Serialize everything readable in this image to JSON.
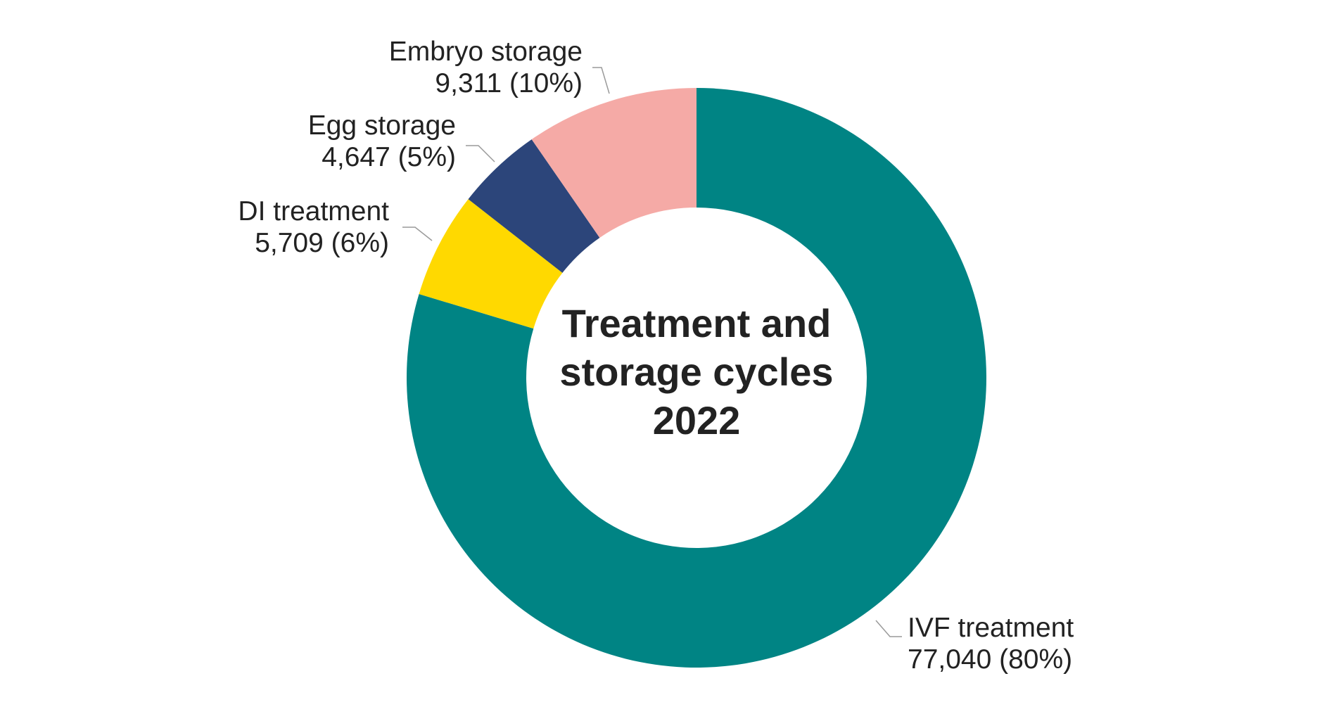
{
  "chart_data": {
    "type": "pie",
    "style": "donut",
    "title_lines": [
      "Treatment and",
      "storage cycles",
      "2022"
    ],
    "slices": [
      {
        "name": "IVF treatment",
        "value": 77040,
        "value_label": "77,040 (80%)",
        "percent": 80,
        "color": "#008484"
      },
      {
        "name": "DI treatment",
        "value": 5709,
        "value_label": "5,709 (6%)",
        "percent": 6,
        "color": "#FFD900"
      },
      {
        "name": "Egg storage",
        "value": 4647,
        "value_label": "4,647 (5%)",
        "percent": 5,
        "color": "#2C457A"
      },
      {
        "name": "Embryo storage",
        "value": 9311,
        "value_label": "9,311 (10%)",
        "percent": 10,
        "color": "#F5AAA6"
      }
    ],
    "start_angle_deg": 0,
    "direction": "clockwise",
    "legend": "none"
  }
}
